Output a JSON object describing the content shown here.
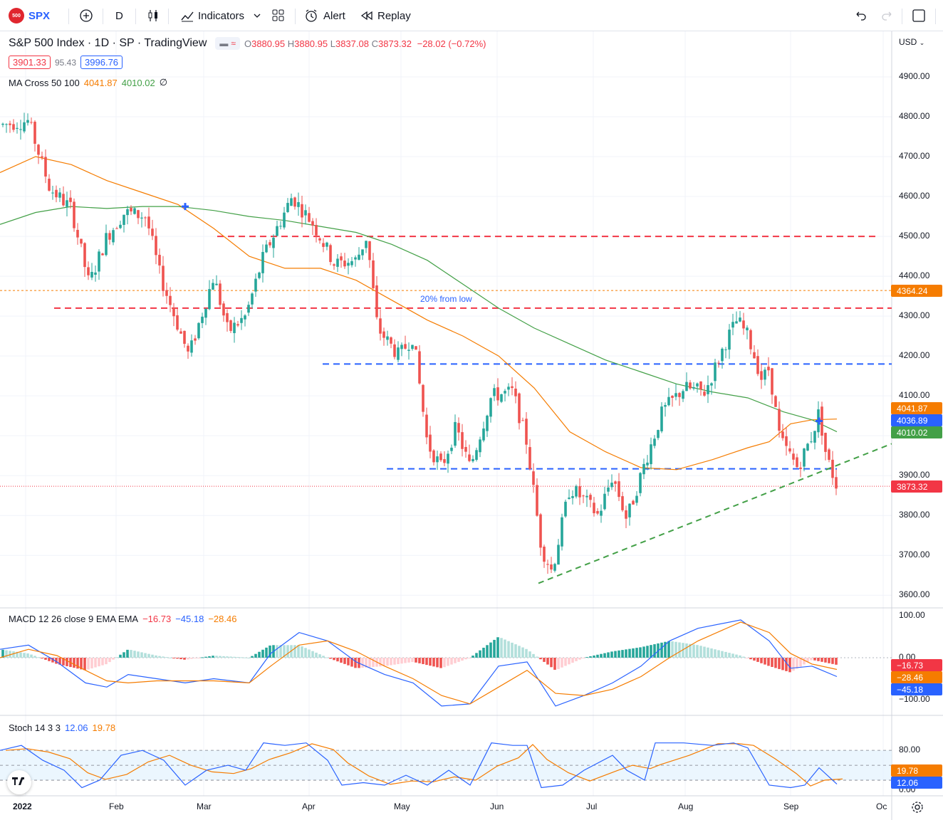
{
  "toolbar": {
    "symbol": "SPX",
    "symbol_logo_text": "500",
    "interval": "D",
    "indicators_label": "Indicators",
    "alert_label": "Alert",
    "replay_label": "Replay"
  },
  "legend": {
    "title": "S&P 500 Index · 1D · SP · TradingView",
    "open_label": "O",
    "open": "3880.95",
    "high_label": "H",
    "high": "3880.95",
    "low_label": "L",
    "low": "3837.08",
    "close_label": "C",
    "close": "3873.32",
    "change": "−28.02 (−0.72%)",
    "bid": "3901.33",
    "spread": "95.43",
    "ask": "3996.76"
  },
  "ma_cross": {
    "name": "MA Cross 50 100",
    "val_fast": "4041.87",
    "val_slow": "4010.02",
    "hide_symbol": "∅"
  },
  "macd": {
    "name": "MACD 12 26 close 9 EMA EMA",
    "v1": "−16.73",
    "v2": "−45.18",
    "v3": "−28.46"
  },
  "stoch": {
    "name": "Stoch 14 3 3",
    "k": "12.06",
    "d": "19.78"
  },
  "price_axis": {
    "currency": "USD",
    "ticks": [
      "4900.00",
      "4800.00",
      "4700.00",
      "4600.00",
      "4500.00",
      "4400.00",
      "4300.00",
      "4200.00",
      "4100.00",
      "4000.00",
      "3900.00",
      "3800.00",
      "3700.00",
      "3600.00"
    ],
    "tags": [
      {
        "text": "4364.24",
        "color": "#f57c00"
      },
      {
        "text": "4041.87",
        "color": "#f57c00"
      },
      {
        "text": "4036.89",
        "color": "#2962ff"
      },
      {
        "text": "4010.02",
        "color": "#43a047"
      },
      {
        "text": "3873.32",
        "color": "#f23645"
      }
    ]
  },
  "macd_axis": {
    "ticks": [
      "100.00",
      "0.00",
      "−100.00"
    ],
    "tags": [
      "−16.73",
      "−28.46",
      "−45.18"
    ]
  },
  "stoch_axis": {
    "ticks": [
      "80.00",
      "40.00",
      "0.00"
    ],
    "tags": [
      "19.78",
      "12.06"
    ]
  },
  "time_axis": {
    "labels": [
      "2022",
      "Feb",
      "Mar",
      "Apr",
      "May",
      "Jun",
      "Jul",
      "Aug",
      "Sep",
      "Oc"
    ]
  },
  "annotations": {
    "fib_text": "20% from low"
  },
  "colors": {
    "up": "#26a69a",
    "down": "#ef5350",
    "ma_fast": "#f57c00",
    "ma_slow": "#43a047",
    "macd": "#2962ff",
    "signal": "#f57c00"
  }
}
